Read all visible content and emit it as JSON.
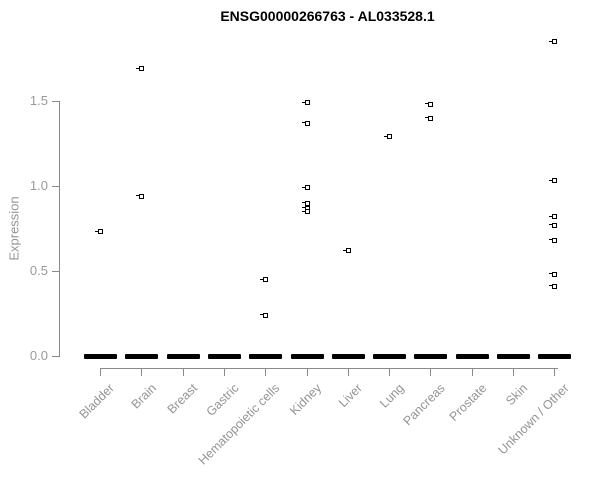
{
  "title": "ENSG00000266763 - AL033528.1",
  "colors": {
    "points": "#000000",
    "zero_bar": "#000000",
    "axis_line": "#898989",
    "tick_text": "#999999",
    "category_text": "#949494",
    "title_text": "#000000",
    "background": "#ffffff"
  },
  "chart_data": {
    "type": "scatter",
    "subtype": "strip-plot",
    "title": "ENSG00000266763 - AL033528.1",
    "xlabel": "",
    "ylabel": "Expression",
    "ylim": [
      -0.05,
      1.9
    ],
    "yticks": [
      0.0,
      0.5,
      1.0,
      1.5
    ],
    "ytick_labels": [
      "0.0",
      "0.5",
      "1.0",
      "1.5"
    ],
    "grid": false,
    "legend_position": "none",
    "marker": "open-square",
    "zero_cluster_note": "each category shows a dense cluster of samples at 0 rendered as a thick black dash",
    "categories": [
      "Bladder",
      "Brain",
      "Breast",
      "Gastric",
      "Hematopoietic cells",
      "Kidney",
      "Liver",
      "Lung",
      "Pancreas",
      "Prostate",
      "Skin",
      "Unknown / Other"
    ],
    "series": [
      {
        "category": "Bladder",
        "zero_cluster": true,
        "values": [
          0.73
        ]
      },
      {
        "category": "Brain",
        "zero_cluster": true,
        "values": [
          1.69,
          0.94
        ]
      },
      {
        "category": "Breast",
        "zero_cluster": true,
        "values": []
      },
      {
        "category": "Gastric",
        "zero_cluster": true,
        "values": []
      },
      {
        "category": "Hematopoietic cells",
        "zero_cluster": true,
        "values": [
          0.45,
          0.24
        ]
      },
      {
        "category": "Kidney",
        "zero_cluster": true,
        "values": [
          1.49,
          1.37,
          0.99,
          0.9,
          0.87,
          0.85
        ]
      },
      {
        "category": "Liver",
        "zero_cluster": true,
        "values": [
          0.62
        ]
      },
      {
        "category": "Lung",
        "zero_cluster": true,
        "values": [
          1.29
        ]
      },
      {
        "category": "Pancreas",
        "zero_cluster": true,
        "values": [
          1.48,
          1.4
        ]
      },
      {
        "category": "Prostate",
        "zero_cluster": true,
        "values": []
      },
      {
        "category": "Skin",
        "zero_cluster": true,
        "values": []
      },
      {
        "category": "Unknown / Other",
        "zero_cluster": true,
        "values": [
          1.85,
          1.03,
          0.82,
          0.77,
          0.68,
          0.48,
          0.41
        ]
      }
    ]
  }
}
